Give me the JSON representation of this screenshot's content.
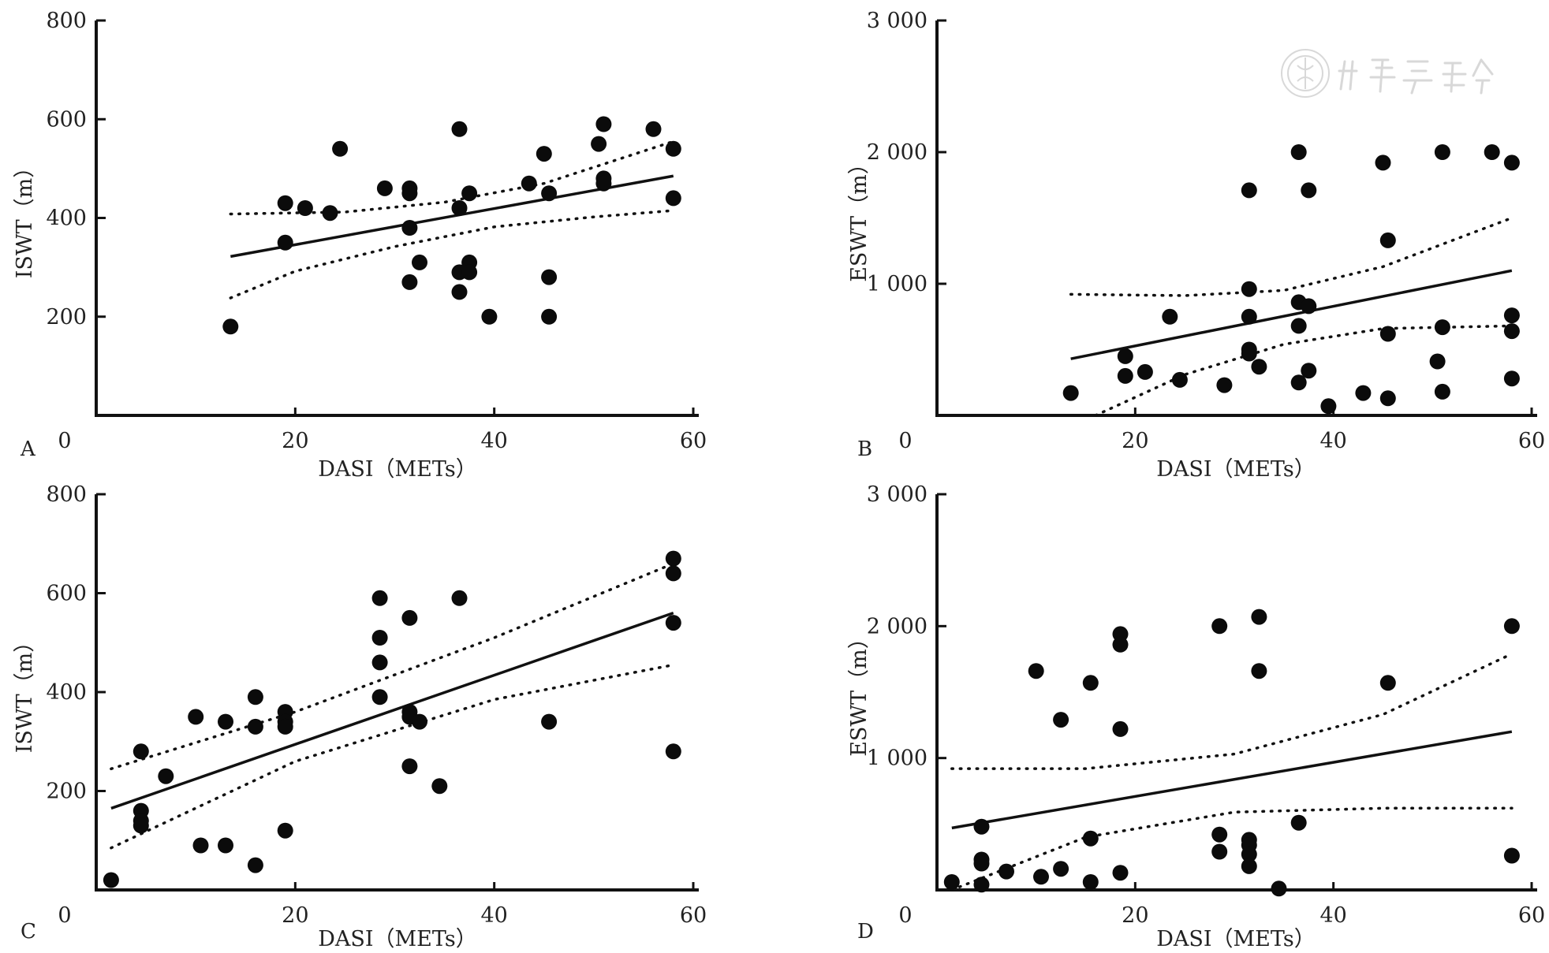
{
  "chart_data": [
    {
      "type": "scatter",
      "panel": "A",
      "xlabel": "DASI（METs）",
      "ylabel": "ISWT（m）",
      "xlim": [
        0,
        60
      ],
      "ylim": [
        0,
        800
      ],
      "x_ticks": [
        0,
        20,
        40,
        60
      ],
      "x_tick_labels": [
        "0",
        "20",
        "40",
        "60"
      ],
      "y_ticks": [
        200,
        400,
        600,
        800
      ],
      "y_tick_labels": [
        "200",
        "400",
        "600",
        "800"
      ],
      "points": [
        [
          13.5,
          180
        ],
        [
          19,
          350
        ],
        [
          19,
          430
        ],
        [
          21,
          420
        ],
        [
          23.5,
          410
        ],
        [
          24.5,
          540
        ],
        [
          29,
          460
        ],
        [
          31.5,
          460
        ],
        [
          31.5,
          450
        ],
        [
          31.5,
          380
        ],
        [
          31.5,
          270
        ],
        [
          32.5,
          310
        ],
        [
          36.5,
          580
        ],
        [
          36.5,
          420
        ],
        [
          36.5,
          290
        ],
        [
          36.5,
          250
        ],
        [
          37.5,
          450
        ],
        [
          37.5,
          310
        ],
        [
          37.5,
          290
        ],
        [
          39.5,
          200
        ],
        [
          43.5,
          470
        ],
        [
          45,
          530
        ],
        [
          45.5,
          450
        ],
        [
          45.5,
          280
        ],
        [
          45.5,
          200
        ],
        [
          50.5,
          550
        ],
        [
          51,
          590
        ],
        [
          51,
          480
        ],
        [
          51,
          470
        ],
        [
          56,
          580
        ],
        [
          58,
          540
        ],
        [
          58,
          440
        ]
      ],
      "fit_line": [
        [
          13.5,
          322
        ],
        [
          58,
          485
        ]
      ],
      "ci_upper": [
        [
          13.5,
          408
        ],
        [
          25,
          412
        ],
        [
          35,
          432
        ],
        [
          45,
          470
        ],
        [
          58,
          555
        ]
      ],
      "ci_lower": [
        [
          13.5,
          238
        ],
        [
          20,
          292
        ],
        [
          30,
          342
        ],
        [
          40,
          382
        ],
        [
          50,
          402
        ],
        [
          58,
          415
        ]
      ]
    },
    {
      "type": "scatter",
      "panel": "B",
      "xlabel": "DASI（METs）",
      "ylabel": "ESWT（m）",
      "xlim": [
        0,
        60
      ],
      "ylim": [
        0,
        3000
      ],
      "x_ticks": [
        0,
        20,
        40,
        60
      ],
      "x_tick_labels": [
        "0",
        "20",
        "40",
        "60"
      ],
      "y_ticks": [
        1000,
        2000,
        3000
      ],
      "y_tick_labels": [
        "1 000",
        "2 000",
        "3 000"
      ],
      "points": [
        [
          13.5,
          170
        ],
        [
          19,
          450
        ],
        [
          19,
          300
        ],
        [
          21,
          330
        ],
        [
          23.5,
          750
        ],
        [
          24.5,
          270
        ],
        [
          29,
          230
        ],
        [
          31.5,
          1710
        ],
        [
          31.5,
          960
        ],
        [
          31.5,
          750
        ],
        [
          31.5,
          500
        ],
        [
          31.5,
          470
        ],
        [
          32.5,
          370
        ],
        [
          36.5,
          2000
        ],
        [
          36.5,
          860
        ],
        [
          36.5,
          680
        ],
        [
          36.5,
          250
        ],
        [
          37.5,
          1710
        ],
        [
          37.5,
          830
        ],
        [
          37.5,
          340
        ],
        [
          39.5,
          70
        ],
        [
          43,
          170
        ],
        [
          45,
          1920
        ],
        [
          45.5,
          1330
        ],
        [
          45.5,
          620
        ],
        [
          45.5,
          130
        ],
        [
          50.5,
          410
        ],
        [
          51,
          2000
        ],
        [
          51,
          670
        ],
        [
          51,
          180
        ],
        [
          56,
          2000
        ],
        [
          58,
          1920
        ],
        [
          58,
          760
        ],
        [
          58,
          640
        ],
        [
          58,
          280
        ]
      ],
      "fit_line": [
        [
          13.5,
          430
        ],
        [
          58,
          1100
        ]
      ],
      "ci_upper": [
        [
          13.5,
          920
        ],
        [
          25,
          910
        ],
        [
          35,
          950
        ],
        [
          45,
          1130
        ],
        [
          58,
          1500
        ]
      ],
      "ci_lower": [
        [
          16,
          0
        ],
        [
          25,
          310
        ],
        [
          35,
          540
        ],
        [
          45,
          660
        ],
        [
          58,
          680
        ]
      ]
    },
    {
      "type": "scatter",
      "panel": "C",
      "xlabel": "DASI（METs）",
      "ylabel": "ISWT（m）",
      "xlim": [
        0,
        60
      ],
      "ylim": [
        0,
        800
      ],
      "x_ticks": [
        0,
        20,
        40,
        60
      ],
      "x_tick_labels": [
        "0",
        "20",
        "40",
        "60"
      ],
      "y_ticks": [
        200,
        400,
        600,
        800
      ],
      "y_tick_labels": [
        "200",
        "400",
        "600",
        "800"
      ],
      "points": [
        [
          1.5,
          20
        ],
        [
          4.5,
          280
        ],
        [
          4.5,
          160
        ],
        [
          4.5,
          140
        ],
        [
          4.5,
          130
        ],
        [
          7,
          230
        ],
        [
          10,
          350
        ],
        [
          10.5,
          90
        ],
        [
          13,
          340
        ],
        [
          13,
          90
        ],
        [
          16,
          390
        ],
        [
          16,
          330
        ],
        [
          16,
          50
        ],
        [
          19,
          360
        ],
        [
          19,
          340
        ],
        [
          19,
          330
        ],
        [
          19,
          120
        ],
        [
          28.5,
          590
        ],
        [
          28.5,
          510
        ],
        [
          28.5,
          460
        ],
        [
          28.5,
          390
        ],
        [
          31.5,
          550
        ],
        [
          31.5,
          360
        ],
        [
          31.5,
          350
        ],
        [
          31.5,
          250
        ],
        [
          32.5,
          340
        ],
        [
          34.5,
          210
        ],
        [
          36.5,
          590
        ],
        [
          45.5,
          340
        ],
        [
          58,
          670
        ],
        [
          58,
          640
        ],
        [
          58,
          540
        ],
        [
          58,
          280
        ]
      ],
      "fit_line": [
        [
          1.5,
          165
        ],
        [
          58,
          560
        ]
      ],
      "ci_upper": [
        [
          1.5,
          245
        ],
        [
          20,
          360
        ],
        [
          40,
          510
        ],
        [
          58,
          660
        ]
      ],
      "ci_lower": [
        [
          1.5,
          85
        ],
        [
          20,
          260
        ],
        [
          40,
          385
        ],
        [
          58,
          455
        ]
      ]
    },
    {
      "type": "scatter",
      "panel": "D",
      "xlabel": "DASI（METs）",
      "ylabel": "ESWT（m）",
      "xlim": [
        0,
        60
      ],
      "ylim": [
        0,
        3000
      ],
      "x_ticks": [
        0,
        20,
        40,
        60
      ],
      "x_tick_labels": [
        "0",
        "20",
        "40",
        "60"
      ],
      "y_ticks": [
        1000,
        2000,
        3000
      ],
      "y_tick_labels": [
        "1 000",
        "2 000",
        "3 000"
      ],
      "points": [
        [
          1.5,
          60
        ],
        [
          4.5,
          480
        ],
        [
          4.5,
          230
        ],
        [
          4.5,
          200
        ],
        [
          4.5,
          40
        ],
        [
          7,
          140
        ],
        [
          10,
          1660
        ],
        [
          10.5,
          100
        ],
        [
          12.5,
          1290
        ],
        [
          12.5,
          160
        ],
        [
          15.5,
          1570
        ],
        [
          15.5,
          390
        ],
        [
          15.5,
          60
        ],
        [
          18.5,
          1940
        ],
        [
          18.5,
          1860
        ],
        [
          18.5,
          1220
        ],
        [
          18.5,
          130
        ],
        [
          28.5,
          2000
        ],
        [
          28.5,
          420
        ],
        [
          28.5,
          290
        ],
        [
          31.5,
          380
        ],
        [
          31.5,
          340
        ],
        [
          31.5,
          270
        ],
        [
          31.5,
          180
        ],
        [
          32.5,
          2070
        ],
        [
          32.5,
          1660
        ],
        [
          34.5,
          10
        ],
        [
          36.5,
          510
        ],
        [
          45.5,
          1570
        ],
        [
          58,
          2000
        ],
        [
          58,
          260
        ]
      ],
      "fit_line": [
        [
          1.5,
          470
        ],
        [
          58,
          1200
        ]
      ],
      "ci_upper": [
        [
          1.5,
          920
        ],
        [
          15,
          920
        ],
        [
          30,
          1030
        ],
        [
          45,
          1330
        ],
        [
          58,
          1790
        ]
      ],
      "ci_lower": [
        [
          1.5,
          0
        ],
        [
          15,
          400
        ],
        [
          30,
          590
        ],
        [
          45,
          620
        ],
        [
          58,
          620
        ]
      ]
    }
  ],
  "watermark": {
    "text": "中华医学会",
    "icon": "society-seal-icon"
  }
}
